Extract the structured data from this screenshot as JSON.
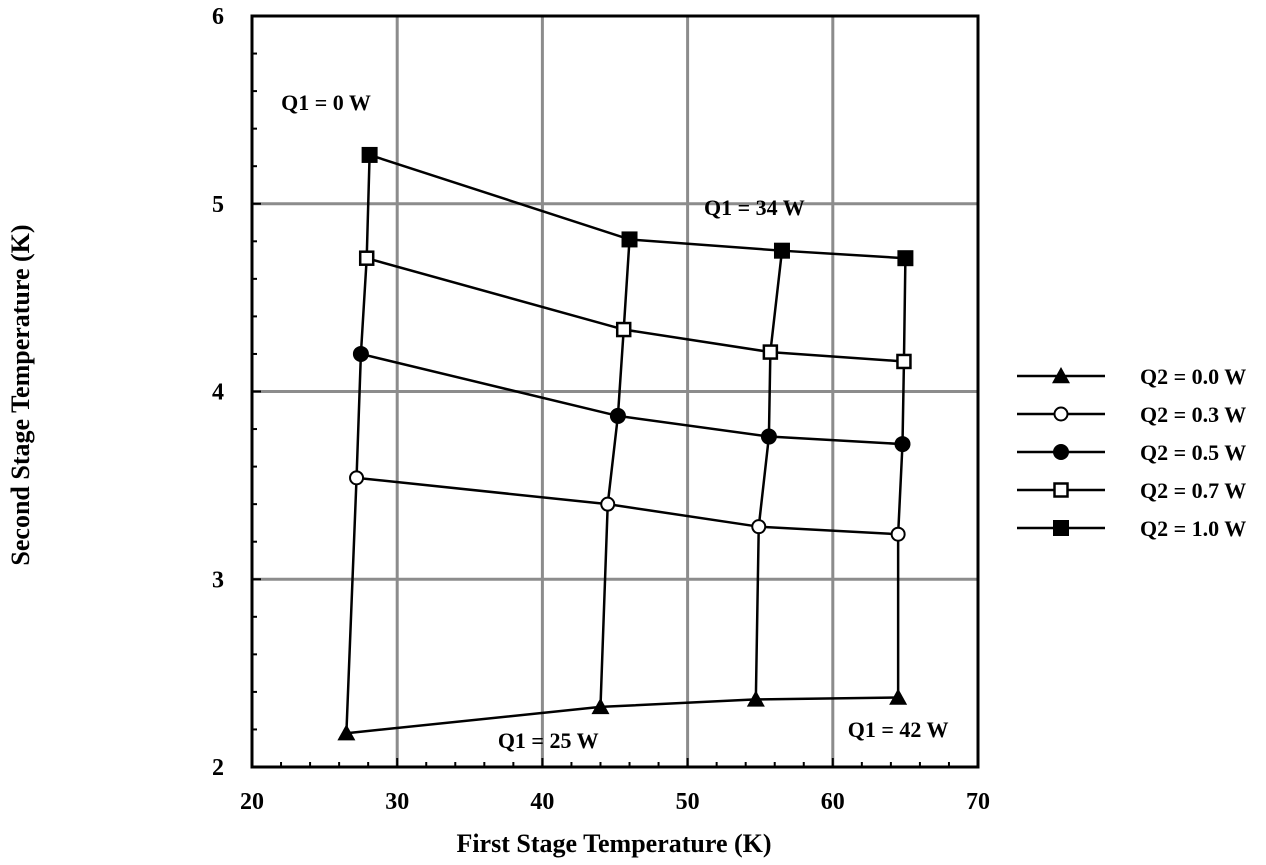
{
  "chart_data": {
    "type": "line",
    "title": "",
    "xlabel": "First Stage Temperature (K)",
    "ylabel": "Second Stage Temperature (K)",
    "xlim": [
      20,
      70
    ],
    "ylim": [
      2,
      6
    ],
    "xticks": [
      20,
      30,
      40,
      50,
      60,
      70
    ],
    "yticks": [
      2,
      3,
      4,
      5,
      6
    ],
    "grid": true,
    "legend_position": "right",
    "series": [
      {
        "name": "Q2 = 0.0 W",
        "marker": "filled-triangle",
        "points": [
          [
            26.5,
            2.18
          ],
          [
            44.0,
            2.32
          ],
          [
            54.7,
            2.36
          ],
          [
            64.5,
            2.37
          ]
        ]
      },
      {
        "name": "Q2 = 0.3 W",
        "marker": "open-circle",
        "points": [
          [
            27.2,
            3.54
          ],
          [
            44.5,
            3.4
          ],
          [
            54.9,
            3.28
          ],
          [
            64.5,
            3.24
          ]
        ]
      },
      {
        "name": "Q2 = 0.5 W",
        "marker": "filled-circle",
        "points": [
          [
            27.5,
            4.2
          ],
          [
            45.2,
            3.87
          ],
          [
            55.6,
            3.76
          ],
          [
            64.8,
            3.72
          ]
        ]
      },
      {
        "name": "Q2 = 0.7 W",
        "marker": "open-square",
        "points": [
          [
            27.9,
            4.71
          ],
          [
            45.6,
            4.33
          ],
          [
            55.7,
            4.21
          ],
          [
            64.9,
            4.16
          ]
        ]
      },
      {
        "name": "Q2 = 1.0 W",
        "marker": "filled-square",
        "points": [
          [
            28.1,
            5.26
          ],
          [
            46.0,
            4.81
          ],
          [
            56.5,
            4.75
          ],
          [
            65.0,
            4.71
          ]
        ]
      }
    ],
    "annotations": [
      {
        "text": "Q1 = 0 W",
        "x": 25.1,
        "y": 5.5
      },
      {
        "text": "Q1 = 34 W",
        "x": 54.6,
        "y": 4.94
      },
      {
        "text": "Q1 = 25 W",
        "x": 40.4,
        "y": 2.1
      },
      {
        "text": "Q1 = 42 W",
        "x": 64.5,
        "y": 2.16
      }
    ]
  }
}
